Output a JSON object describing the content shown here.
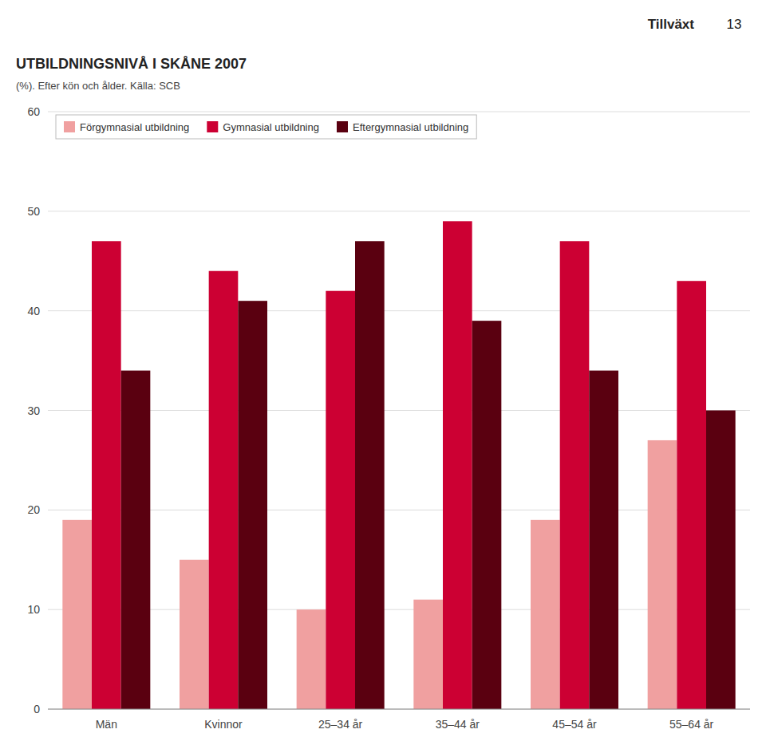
{
  "chart_data": {
    "type": "bar",
    "title": "UTBILDNINGSNIVÅ I SKÅNE 2007",
    "subtitle": "(%). Efter kön och ålder. Källa: SCB",
    "annotations": [
      "Tillväxt",
      "13"
    ],
    "categories": [
      "Män",
      "Kvinnor",
      "25–34 år",
      "35–44 år",
      "45–54 år",
      "55–64 år"
    ],
    "series": [
      {
        "name": "Förgymnasial utbildning",
        "color": "#f0a0a0",
        "values": [
          19,
          15,
          10,
          11,
          19,
          27
        ]
      },
      {
        "name": "Gymnasial utbildning",
        "color": "#cc0033",
        "values": [
          47,
          44,
          42,
          49,
          47,
          43
        ]
      },
      {
        "name": "Eftergymnasial utbildning",
        "color": "#5a0010",
        "values": [
          34,
          41,
          47,
          39,
          34,
          30
        ]
      }
    ],
    "ylim": [
      0,
      60
    ],
    "yticks": [
      0,
      10,
      20,
      30,
      40,
      50,
      60
    ],
    "grid": true,
    "legend": "upper left"
  }
}
